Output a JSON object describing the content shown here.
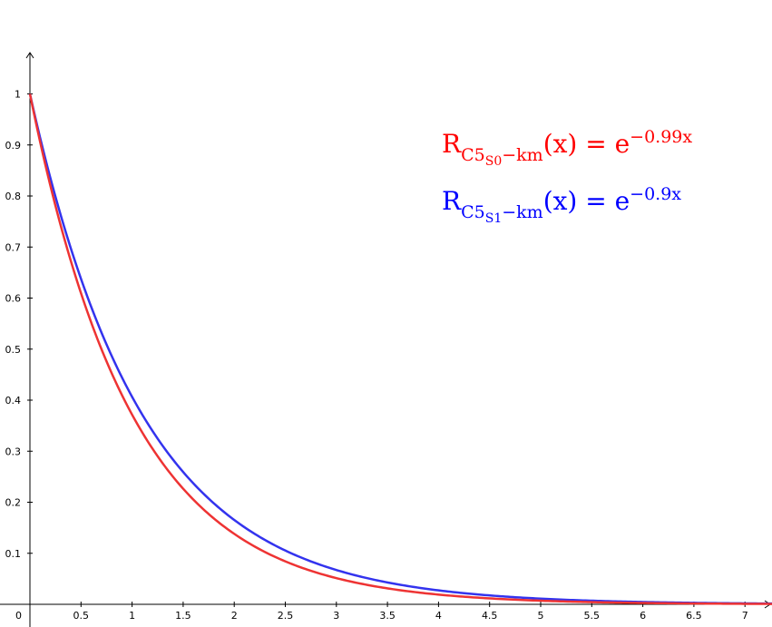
{
  "chart_data": {
    "type": "line",
    "title": "",
    "xlabel": "",
    "ylabel": "",
    "xlim": [
      0,
      7.35
    ],
    "ylim": [
      0,
      1.08
    ],
    "x_ticks": [
      {
        "v": 0.5,
        "label": "0.5"
      },
      {
        "v": 1,
        "label": "1"
      },
      {
        "v": 1.5,
        "label": "1.5"
      },
      {
        "v": 2,
        "label": "2"
      },
      {
        "v": 2.5,
        "label": "2.5"
      },
      {
        "v": 3,
        "label": "3"
      },
      {
        "v": 3.5,
        "label": "3.5"
      },
      {
        "v": 4,
        "label": "4"
      },
      {
        "v": 4.5,
        "label": "4.5"
      },
      {
        "v": 5,
        "label": "5"
      },
      {
        "v": 5.5,
        "label": "5.5"
      },
      {
        "v": 6,
        "label": "6"
      },
      {
        "v": 6.5,
        "label": "6.5"
      },
      {
        "v": 7,
        "label": "7"
      }
    ],
    "y_ticks": [
      {
        "v": 0.1,
        "label": "0.1"
      },
      {
        "v": 0.2,
        "label": "0.2"
      },
      {
        "v": 0.3,
        "label": "0.3"
      },
      {
        "v": 0.4,
        "label": "0.4"
      },
      {
        "v": 0.5,
        "label": "0.5"
      },
      {
        "v": 0.6,
        "label": "0.6"
      },
      {
        "v": 0.7,
        "label": "0.7"
      },
      {
        "v": 0.8,
        "label": "0.8"
      },
      {
        "v": 0.9,
        "label": "0.9"
      },
      {
        "v": 1,
        "label": "1"
      }
    ],
    "origin_label": "0",
    "grid": false,
    "series": [
      {
        "color": "#ee3333",
        "rate": 0.99,
        "x": [
          0,
          0.5,
          1,
          1.5,
          2,
          2.5,
          3,
          3.5,
          4,
          4.5,
          5,
          5.5,
          6,
          6.5,
          7,
          7.35
        ],
        "values": [
          1,
          0.6096,
          0.3716,
          0.2265,
          0.1381,
          0.0842,
          0.0513,
          0.0313,
          0.0191,
          0.0116,
          0.0071,
          0.0043,
          0.0026,
          0.0016,
          0.001,
          0.0007
        ]
      },
      {
        "color": "#3333ee",
        "rate": 0.9,
        "x": [
          0,
          0.5,
          1,
          1.5,
          2,
          2.5,
          3,
          3.5,
          4,
          4.5,
          5,
          5.5,
          6,
          6.5,
          7,
          7.35
        ],
        "values": [
          1,
          0.6376,
          0.4066,
          0.2592,
          0.1653,
          0.1054,
          0.0672,
          0.0429,
          0.0273,
          0.0174,
          0.0111,
          0.0071,
          0.0045,
          0.0029,
          0.0018,
          0.0013
        ]
      }
    ]
  },
  "legend": [
    {
      "color": "#ff0000",
      "R": "R",
      "sub_main": "C5",
      "sub_inner": "S0",
      "sub_tail": "−km",
      "lhs_tail": "(x) = e",
      "exponent": "−0.99x"
    },
    {
      "color": "#0000ff",
      "R": "R",
      "sub_main": "C5",
      "sub_inner": "S1",
      "sub_tail": "−km",
      "lhs_tail": "(x) = e",
      "exponent": "−0.9x"
    }
  ]
}
